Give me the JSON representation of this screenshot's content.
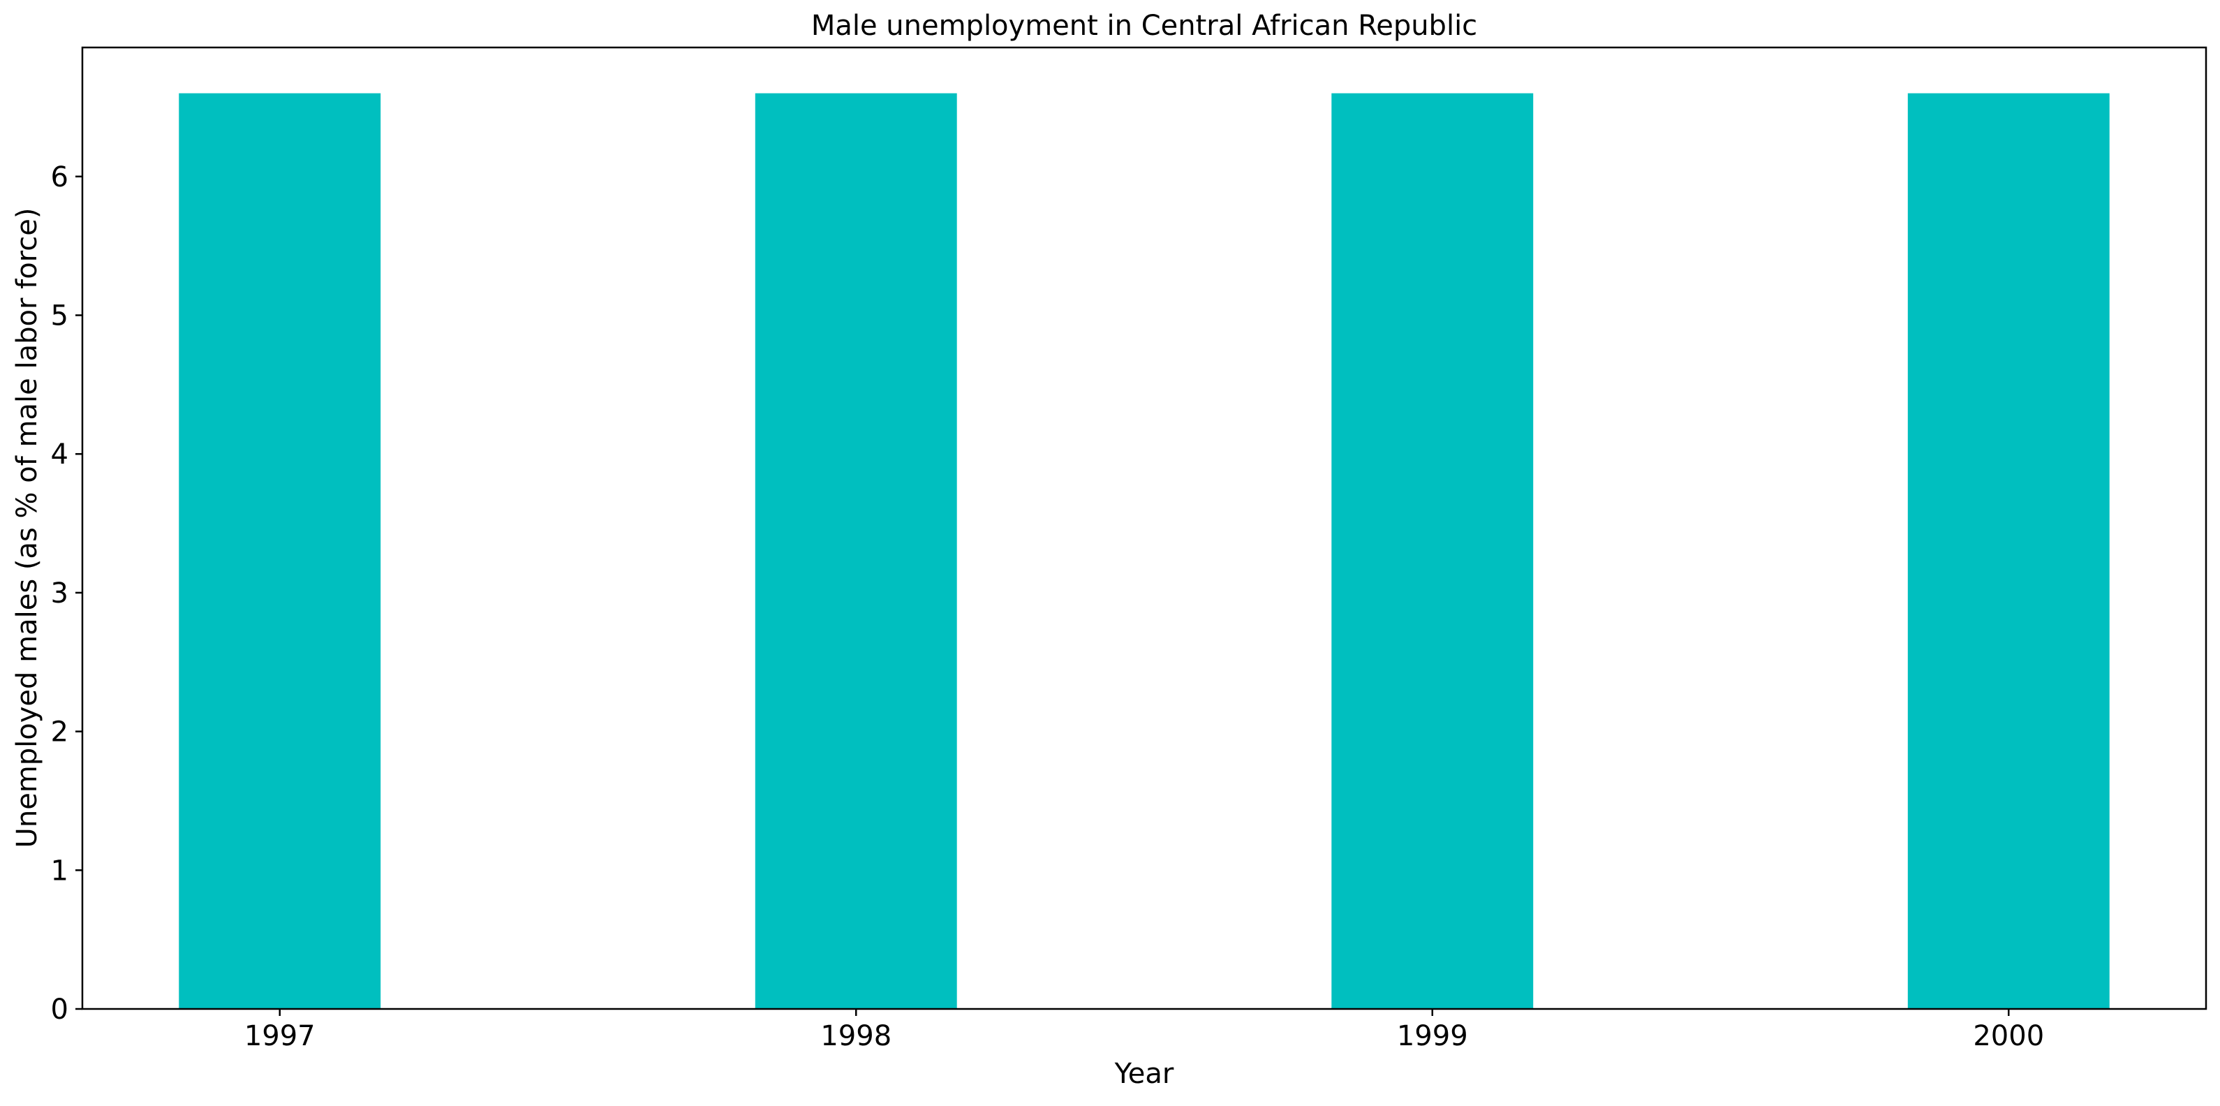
{
  "chart_data": {
    "type": "bar",
    "title": "Male unemployment in Central African Republic",
    "xlabel": "Year",
    "ylabel": "Unemployed males (as % of male labor force)",
    "categories": [
      "1997",
      "1998",
      "1999",
      "2000"
    ],
    "values": [
      6.6,
      6.6,
      6.6,
      6.6
    ],
    "ylim": [
      0,
      6.93
    ],
    "yticks": [
      0,
      1,
      2,
      3,
      4,
      5,
      6
    ],
    "grid": false,
    "legend": "none",
    "bar_color": "#00bfbf"
  }
}
